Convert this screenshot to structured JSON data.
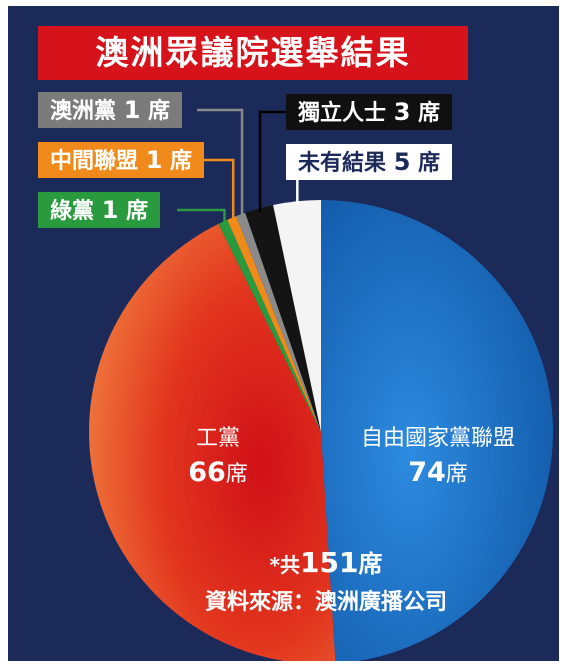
{
  "chart_data": {
    "type": "pie",
    "title": "澳洲眾議院選舉結果",
    "unit": "席",
    "total": 151,
    "slices": [
      {
        "label": "自由國家黨聯盟",
        "value": 74,
        "color": "#1f6fc6"
      },
      {
        "label": "工黨",
        "value": 66,
        "color": "#d6121b"
      },
      {
        "label": "綠黨",
        "value": 1,
        "color": "#2a9a3e"
      },
      {
        "label": "中間聯盟",
        "value": 1,
        "color": "#f08a1a"
      },
      {
        "label": "澳洲黨",
        "value": 1,
        "color": "#8a8a8a"
      },
      {
        "label": "獨立人士",
        "value": 3,
        "color": "#141414"
      },
      {
        "label": "未有結果",
        "value": 5,
        "color": "#f4f4f4"
      }
    ],
    "legend_boxes": [
      {
        "name": "澳洲黨",
        "num": "1",
        "unit": "席"
      },
      {
        "name": "中間聯盟",
        "num": "1",
        "unit": "席"
      },
      {
        "name": "綠黨",
        "num": "1",
        "unit": "席"
      },
      {
        "name": "獨立人士",
        "num": "3",
        "unit": "席"
      },
      {
        "name": "未有結果",
        "num": "5",
        "unit": "席"
      }
    ],
    "inner_labels": [
      {
        "name": "自由國家黨聯盟",
        "num": "74",
        "unit": "席"
      },
      {
        "name": "工黨",
        "num": "66",
        "unit": "席"
      }
    ]
  },
  "footnote": {
    "total_prefix": "*共",
    "total_num": "151",
    "total_unit": "席",
    "source": "資料來源：澳洲廣播公司"
  }
}
